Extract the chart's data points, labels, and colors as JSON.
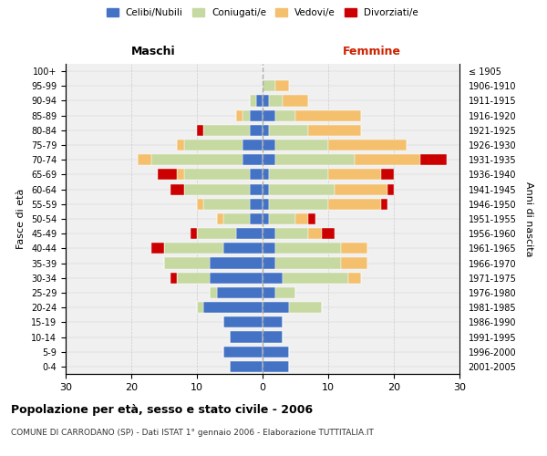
{
  "age_groups": [
    "100+",
    "95-99",
    "90-94",
    "85-89",
    "80-84",
    "75-79",
    "70-74",
    "65-69",
    "60-64",
    "55-59",
    "50-54",
    "45-49",
    "40-44",
    "35-39",
    "30-34",
    "25-29",
    "20-24",
    "15-19",
    "10-14",
    "5-9",
    "0-4"
  ],
  "birth_years": [
    "≤ 1905",
    "1906-1910",
    "1911-1915",
    "1916-1920",
    "1921-1925",
    "1926-1930",
    "1931-1935",
    "1936-1940",
    "1941-1945",
    "1946-1950",
    "1951-1955",
    "1956-1960",
    "1961-1965",
    "1966-1970",
    "1971-1975",
    "1976-1980",
    "1981-1985",
    "1986-1990",
    "1991-1995",
    "1996-2000",
    "2001-2005"
  ],
  "colors": {
    "celibe": "#4472C4",
    "coniugato": "#C5D9A0",
    "vedovo": "#F4C06E",
    "divorziato": "#CC0000"
  },
  "males": {
    "celibe": [
      0,
      0,
      1,
      2,
      2,
      3,
      3,
      2,
      2,
      2,
      2,
      4,
      6,
      8,
      8,
      7,
      9,
      6,
      5,
      6,
      5
    ],
    "coniugato": [
      0,
      0,
      1,
      1,
      7,
      9,
      14,
      10,
      10,
      7,
      4,
      6,
      9,
      7,
      5,
      1,
      1,
      0,
      0,
      0,
      0
    ],
    "vedovo": [
      0,
      0,
      0,
      1,
      0,
      1,
      2,
      1,
      0,
      1,
      1,
      0,
      0,
      0,
      0,
      0,
      0,
      0,
      0,
      0,
      0
    ],
    "divorziato": [
      0,
      0,
      0,
      0,
      1,
      0,
      0,
      3,
      2,
      0,
      0,
      1,
      2,
      0,
      1,
      0,
      0,
      0,
      0,
      0,
      0
    ]
  },
  "females": {
    "nubile": [
      0,
      0,
      1,
      2,
      1,
      2,
      2,
      1,
      1,
      1,
      1,
      2,
      2,
      2,
      3,
      2,
      4,
      3,
      3,
      4,
      4
    ],
    "coniugata": [
      0,
      2,
      2,
      3,
      6,
      8,
      12,
      9,
      10,
      9,
      4,
      5,
      10,
      10,
      10,
      3,
      5,
      0,
      0,
      0,
      0
    ],
    "vedova": [
      0,
      2,
      4,
      10,
      8,
      12,
      10,
      8,
      8,
      8,
      2,
      2,
      4,
      4,
      2,
      0,
      0,
      0,
      0,
      0,
      0
    ],
    "divorziata": [
      0,
      0,
      0,
      0,
      0,
      0,
      4,
      2,
      1,
      1,
      1,
      2,
      0,
      0,
      0,
      0,
      0,
      0,
      0,
      0,
      0
    ]
  },
  "xlim": [
    -30,
    30
  ],
  "xticks": [
    -30,
    -20,
    -10,
    0,
    10,
    20,
    30
  ],
  "xticklabels": [
    "30",
    "20",
    "10",
    "0",
    "10",
    "20",
    "30"
  ],
  "ylabel_left": "Fasce di età",
  "ylabel_right": "Anni di nascita",
  "title": "Popolazione per età, sesso e stato civile - 2006",
  "subtitle": "COMUNE DI CARRODANO (SP) - Dati ISTAT 1° gennaio 2006 - Elaborazione TUTTITALIA.IT",
  "header_left": "Maschi",
  "header_right": "Femmine",
  "background_color": "#F0F0F0",
  "grid_color": "#CCCCCC"
}
